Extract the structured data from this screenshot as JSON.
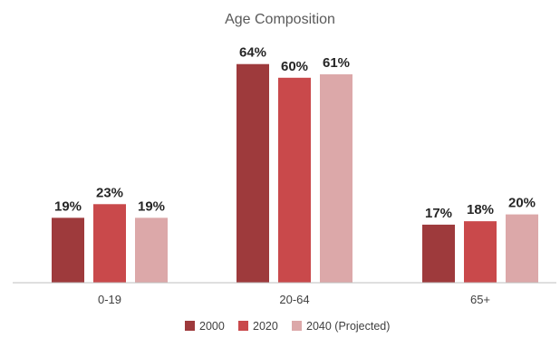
{
  "chart_data": {
    "type": "bar",
    "title": "Age Composition",
    "xlabel": "",
    "ylabel": "",
    "categories": [
      "0-19",
      "20-64",
      "65+"
    ],
    "series": [
      {
        "name": "2000",
        "values": [
          19,
          64,
          17
        ],
        "labels": [
          "19%",
          "64%",
          "17%"
        ]
      },
      {
        "name": "2020",
        "values": [
          23,
          60,
          18
        ],
        "labels": [
          "23%",
          "60%",
          "18%"
        ]
      },
      {
        "name": "2040 (Projected)",
        "values": [
          19,
          61,
          20
        ],
        "labels": [
          "19%",
          "61%",
          "20%"
        ]
      }
    ],
    "ylim": [
      0,
      70
    ],
    "grid": false,
    "legend_position": "bottom",
    "colors": [
      "#9e3a3c",
      "#c9494b",
      "#dca8a9"
    ]
  }
}
